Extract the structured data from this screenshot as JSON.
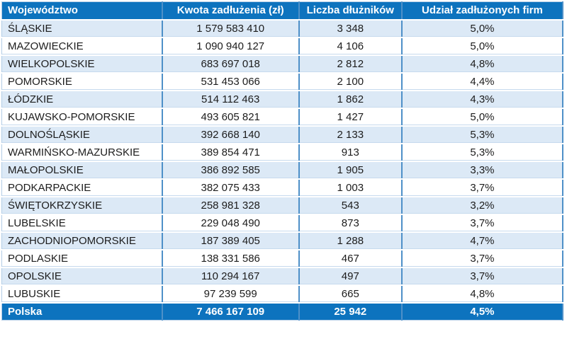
{
  "colors": {
    "header_footer_bg": "#0d73be",
    "header_footer_text": "#ffffff",
    "shaded_row_bg": "#dce9f6",
    "plain_row_bg": "#ffffff",
    "column_rule": "#4e90c8",
    "row_hairline": "#c6daee",
    "body_text": "#1c1c1c"
  },
  "chart_data": {
    "type": "table",
    "columns": [
      "Województwo",
      "Kwota zadłużenia (zł)",
      "Liczba dłużników",
      "Udział zadłużonych firm"
    ],
    "rows": [
      [
        "ŚLĄSKIE",
        "1 579 583 410",
        "3 348",
        "5,0%"
      ],
      [
        "MAZOWIECKIE",
        "1 090 940 127",
        "4 106",
        "5,0%"
      ],
      [
        "WIELKOPOLSKIE",
        "683 697 018",
        "2 812",
        "4,8%"
      ],
      [
        "POMORSKIE",
        "531 453 066",
        "2 100",
        "4,4%"
      ],
      [
        "ŁÓDZKIE",
        "514 112 463",
        "1 862",
        "4,3%"
      ],
      [
        "KUJAWSKO-POMORSKIE",
        "493 605 821",
        "1 427",
        "5,0%"
      ],
      [
        "DOLNOŚLĄSKIE",
        "392 668 140",
        "2 133",
        "5,3%"
      ],
      [
        "WARMIŃSKO-MAZURSKIE",
        "389 854 471",
        "913",
        "5,3%"
      ],
      [
        "MAŁOPOLSKIE",
        "386 892 585",
        "1 905",
        "3,3%"
      ],
      [
        "PODKARPACKIE",
        "382 075 433",
        "1 003",
        "3,7%"
      ],
      [
        "ŚWIĘTOKRZYSKIE",
        "258 981 328",
        "543",
        "3,2%"
      ],
      [
        "LUBELSKIE",
        "229 048 490",
        "873",
        "3,7%"
      ],
      [
        "ZACHODNIOPOMORSKIE",
        "187 389 405",
        "1 288",
        "4,7%"
      ],
      [
        "PODLASKIE",
        "138 331 586",
        "467",
        "3,7%"
      ],
      [
        "OPOLSKIE",
        "110 294 167",
        "497",
        "3,7%"
      ],
      [
        "LUBUSKIE",
        "97 239 599",
        "665",
        "4,8%"
      ]
    ],
    "footer": [
      "Polska",
      "7 466 167 109",
      "25 942",
      "4,5%"
    ],
    "layout_hints": {
      "first_row_shaded": true,
      "numeric_columns_alignment": "center",
      "name_column_alignment": "left"
    }
  }
}
